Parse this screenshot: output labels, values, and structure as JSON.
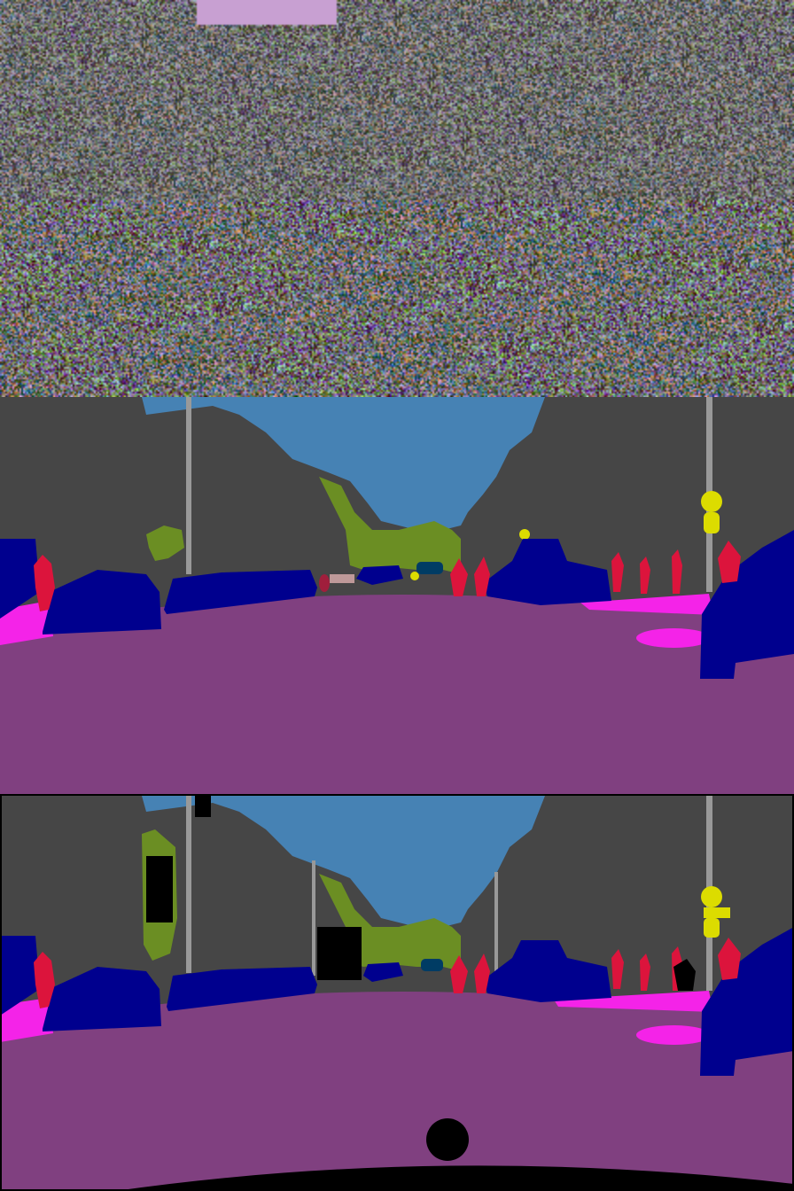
{
  "figure": {
    "panels": [
      {
        "role": "input-feature-visualization"
      },
      {
        "role": "predicted-segmentation"
      },
      {
        "role": "ground-truth-segmentation"
      }
    ]
  },
  "palette": {
    "building": "#464646",
    "sky": "#4682b4",
    "road": "#804080",
    "sidewalk": "#f423e8",
    "car": "#00008e",
    "person": "#dc143c",
    "vegetation": "#6b8e23",
    "pole": "#999999",
    "traffic_sign": "#dcdc00",
    "traffic_light": "#faaa1e",
    "bus_truck": "#003c64",
    "wall": "#be9999",
    "void": "#000000",
    "rider": "#a01e3c"
  }
}
